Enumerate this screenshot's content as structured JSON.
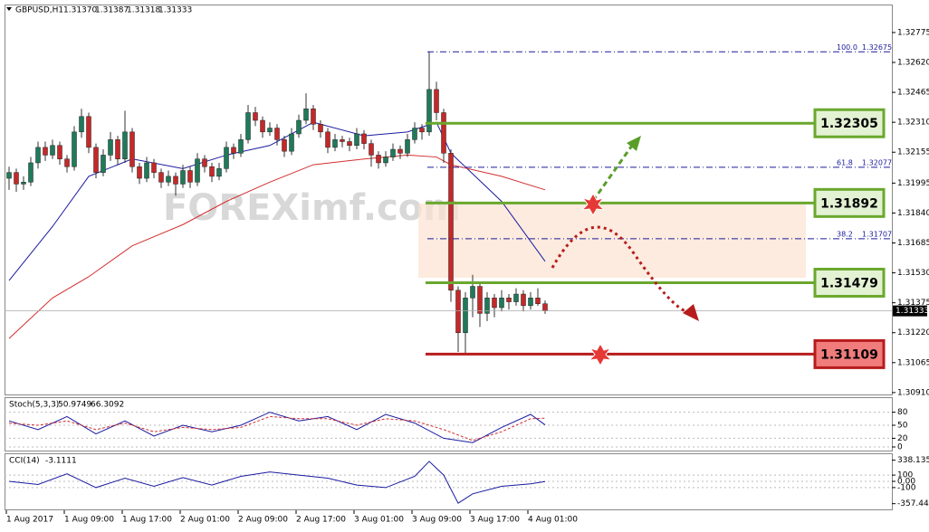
{
  "chart_data": {
    "type": "candlestick",
    "symbol": "GBPUSD,H1",
    "last_ohlc_labels": [
      "1.31370",
      "1.31387",
      "1.31318",
      "1.31333"
    ],
    "x_labels": [
      "1 Aug 2017",
      "1 Aug 09:00",
      "1 Aug 17:00",
      "2 Aug 01:00",
      "2 Aug 09:00",
      "2 Aug 17:00",
      "3 Aug 01:00",
      "3 Aug 09:00",
      "3 Aug 17:00",
      "4 Aug 01:00"
    ],
    "up_color": "#1f7a5a",
    "down_color": "#c62828",
    "ylim": [
      1.309,
      1.3292
    ],
    "yticks": [
      1.32775,
      {
        "value": 1.3262,
        "label": "1.32620"
      },
      1.32465,
      {
        "value": 1.3231,
        "label": "1.32310"
      },
      1.32155,
      1.31995,
      {
        "value": 1.3184,
        "label": "1.31840"
      },
      1.31685,
      {
        "value": 1.3153,
        "label": "1.31530"
      },
      1.31375,
      {
        "value": 1.3122,
        "label": "1.31220"
      },
      1.31065,
      {
        "value": 1.3091,
        "label": "1.30910"
      }
    ],
    "current_price": 1.31333,
    "candles": [
      [
        1.3202,
        1.3208,
        1.3196,
        1.3205
      ],
      [
        1.3205,
        1.3207,
        1.3195,
        1.3199
      ],
      [
        1.3199,
        1.3203,
        1.3196,
        1.32
      ],
      [
        1.32,
        1.3213,
        1.3198,
        1.321
      ],
      [
        1.321,
        1.3221,
        1.3207,
        1.3218
      ],
      [
        1.3218,
        1.3221,
        1.3211,
        1.3214
      ],
      [
        1.3214,
        1.3222,
        1.3212,
        1.3219
      ],
      [
        1.3219,
        1.3221,
        1.3209,
        1.3212
      ],
      [
        1.3212,
        1.3214,
        1.3205,
        1.3208
      ],
      [
        1.3208,
        1.3229,
        1.3206,
        1.3226
      ],
      [
        1.3226,
        1.3238,
        1.3223,
        1.3234
      ],
      [
        1.3234,
        1.3236,
        1.3215,
        1.3218
      ],
      [
        1.3218,
        1.322,
        1.3202,
        1.3205
      ],
      [
        1.3205,
        1.3217,
        1.3203,
        1.3214
      ],
      [
        1.3214,
        1.3226,
        1.3211,
        1.3222
      ],
      [
        1.3222,
        1.3224,
        1.3209,
        1.3212
      ],
      [
        1.3212,
        1.3237,
        1.321,
        1.3226
      ],
      [
        1.3226,
        1.3228,
        1.3205,
        1.3208
      ],
      [
        1.3208,
        1.321,
        1.3199,
        1.3202
      ],
      [
        1.3202,
        1.3213,
        1.32,
        1.321
      ],
      [
        1.321,
        1.3212,
        1.3202,
        1.3205
      ],
      [
        1.3205,
        1.3207,
        1.3197,
        1.32
      ],
      [
        1.32,
        1.3206,
        1.3198,
        1.3203
      ],
      [
        1.3203,
        1.3205,
        1.3193,
        1.3199
      ],
      [
        1.3199,
        1.3209,
        1.3197,
        1.3206
      ],
      [
        1.3206,
        1.3208,
        1.3197,
        1.32
      ],
      [
        1.32,
        1.3215,
        1.3198,
        1.3212
      ],
      [
        1.3212,
        1.3214,
        1.3205,
        1.3208
      ],
      [
        1.3208,
        1.321,
        1.32,
        1.3203
      ],
      [
        1.3203,
        1.321,
        1.3201,
        1.3207
      ],
      [
        1.3207,
        1.3221,
        1.3205,
        1.3218
      ],
      [
        1.3218,
        1.322,
        1.3212,
        1.3215
      ],
      [
        1.3215,
        1.3225,
        1.3213,
        1.3222
      ],
      [
        1.3222,
        1.324,
        1.322,
        1.3236
      ],
      [
        1.3236,
        1.3239,
        1.3229,
        1.3232
      ],
      [
        1.3232,
        1.3234,
        1.3223,
        1.3226
      ],
      [
        1.3226,
        1.3231,
        1.3224,
        1.3228
      ],
      [
        1.3228,
        1.323,
        1.3219,
        1.3222
      ],
      [
        1.3222,
        1.3224,
        1.3213,
        1.3216
      ],
      [
        1.3216,
        1.3228,
        1.3214,
        1.3225
      ],
      [
        1.3225,
        1.3235,
        1.3223,
        1.3232
      ],
      [
        1.3232,
        1.3246,
        1.323,
        1.3238
      ],
      [
        1.3238,
        1.324,
        1.3227,
        1.323
      ],
      [
        1.323,
        1.3232,
        1.3223,
        1.3226
      ],
      [
        1.3226,
        1.3228,
        1.3215,
        1.3218
      ],
      [
        1.3218,
        1.3225,
        1.3216,
        1.3222
      ],
      [
        1.3222,
        1.3224,
        1.3218,
        1.3221
      ],
      [
        1.3221,
        1.3223,
        1.3216,
        1.3219
      ],
      [
        1.3219,
        1.3228,
        1.3217,
        1.3225
      ],
      [
        1.3225,
        1.3227,
        1.3217,
        1.322
      ],
      [
        1.322,
        1.3222,
        1.3208,
        1.3214
      ],
      [
        1.3214,
        1.3216,
        1.3207,
        1.321
      ],
      [
        1.321,
        1.3216,
        1.3208,
        1.3213
      ],
      [
        1.3213,
        1.322,
        1.3211,
        1.3217
      ],
      [
        1.3217,
        1.3219,
        1.3212,
        1.3215
      ],
      [
        1.3215,
        1.3225,
        1.3213,
        1.3222
      ],
      [
        1.3222,
        1.3231,
        1.322,
        1.3228
      ],
      [
        1.3228,
        1.323,
        1.3222,
        1.3226
      ],
      [
        1.3226,
        1.32675,
        1.3224,
        1.3248
      ],
      [
        1.3248,
        1.3252,
        1.3232,
        1.3236
      ],
      [
        1.3236,
        1.3238,
        1.321,
        1.3215
      ],
      [
        1.3215,
        1.3217,
        1.3138,
        1.3144
      ],
      [
        1.3144,
        1.3146,
        1.3112,
        1.3122
      ],
      [
        1.3122,
        1.3143,
        1.31109,
        1.314
      ],
      [
        1.314,
        1.3152,
        1.313,
        1.3146
      ],
      [
        1.3146,
        1.3148,
        1.3125,
        1.3132
      ],
      [
        1.3132,
        1.3143,
        1.3128,
        1.314
      ],
      [
        1.314,
        1.3142,
        1.313,
        1.3135
      ],
      [
        1.3135,
        1.3144,
        1.3133,
        1.314
      ],
      [
        1.314,
        1.3142,
        1.3134,
        1.3138
      ],
      [
        1.3138,
        1.3145,
        1.3136,
        1.3142
      ],
      [
        1.3142,
        1.3144,
        1.3133,
        1.3136
      ],
      [
        1.3136,
        1.3143,
        1.3134,
        1.314
      ],
      [
        1.314,
        1.3145,
        1.3136,
        1.3137
      ],
      [
        1.3137,
        1.31387,
        1.31318,
        1.31333
      ]
    ],
    "moving_averages": {
      "x": [
        0,
        6,
        11,
        17,
        24,
        30,
        36,
        42,
        49,
        55,
        59,
        61,
        68,
        74
      ],
      "series": [
        {
          "color": "#1a1aa0",
          "values": [
            1.3149,
            1.3177,
            1.3203,
            1.3212,
            1.3207,
            1.3214,
            1.3219,
            1.3231,
            1.3224,
            1.3226,
            1.3231,
            1.3215,
            1.319,
            1.3159
          ]
        },
        {
          "color": "#d32f2f",
          "values": [
            1.3119,
            1.314,
            1.3151,
            1.3167,
            1.3178,
            1.319,
            1.32,
            1.3209,
            1.3212,
            1.3214,
            1.3213,
            1.3209,
            1.3203,
            1.3196
          ]
        }
      ]
    },
    "fib_levels": [
      {
        "ratio": {
          "value": 100,
          "label": "100.0"
        },
        "price": 1.32675
      },
      {
        "ratio": 61.8,
        "price": 1.32077
      },
      {
        "ratio": 38.2,
        "price": 1.31707
      }
    ],
    "fib_color": "#1a1a9a",
    "levels": [
      {
        "price": 1.32305,
        "color": "#6aa82e",
        "fill": "#e3f2d3"
      },
      {
        "price": 1.31892,
        "color": "#6aa82e",
        "fill": "#e3f2d3"
      },
      {
        "price": 1.31479,
        "color": "#6aa82e",
        "fill": "#e3f2d3"
      },
      {
        "price": 1.31109,
        "color": "#b71c1c",
        "fill": "#f07c7c"
      }
    ],
    "watermark": "FOREXimf.com",
    "stoch": {
      "title": "Stoch(5,3,3)",
      "ylim": [
        0,
        100
      ],
      "yticks": [
        80,
        50,
        20,
        0
      ],
      "x": [
        0,
        4,
        8,
        12,
        16,
        20,
        24,
        28,
        32,
        36,
        40,
        44,
        48,
        52,
        56,
        60,
        64,
        68,
        72,
        74
      ],
      "main": [
        60,
        40,
        70,
        30,
        60,
        25,
        50,
        35,
        50,
        80,
        60,
        70,
        40,
        75,
        55,
        20,
        10,
        45,
        75,
        50.9749
      ],
      "signal": [
        55,
        50,
        60,
        40,
        55,
        35,
        45,
        40,
        45,
        70,
        65,
        65,
        50,
        65,
        60,
        40,
        15,
        35,
        65,
        66.3092
      ]
    },
    "cci": {
      "title": "CCI(14)",
      "ylim": [
        -420,
        420
      ],
      "yticks": [
        338.1352,
        100,
        {
          "value": 0,
          "label": "0.00"
        },
        -100,
        -357.446
      ],
      "x": [
        0,
        4,
        8,
        12,
        16,
        20,
        24,
        28,
        32,
        36,
        40,
        44,
        48,
        52,
        56,
        58,
        60,
        62,
        64,
        68,
        72,
        74
      ],
      "values": [
        0,
        -50,
        120,
        -100,
        50,
        -80,
        60,
        -60,
        80,
        150,
        100,
        50,
        -60,
        -100,
        80,
        320,
        100,
        -350,
        -200,
        -80,
        -40,
        -3.1111
      ]
    }
  }
}
